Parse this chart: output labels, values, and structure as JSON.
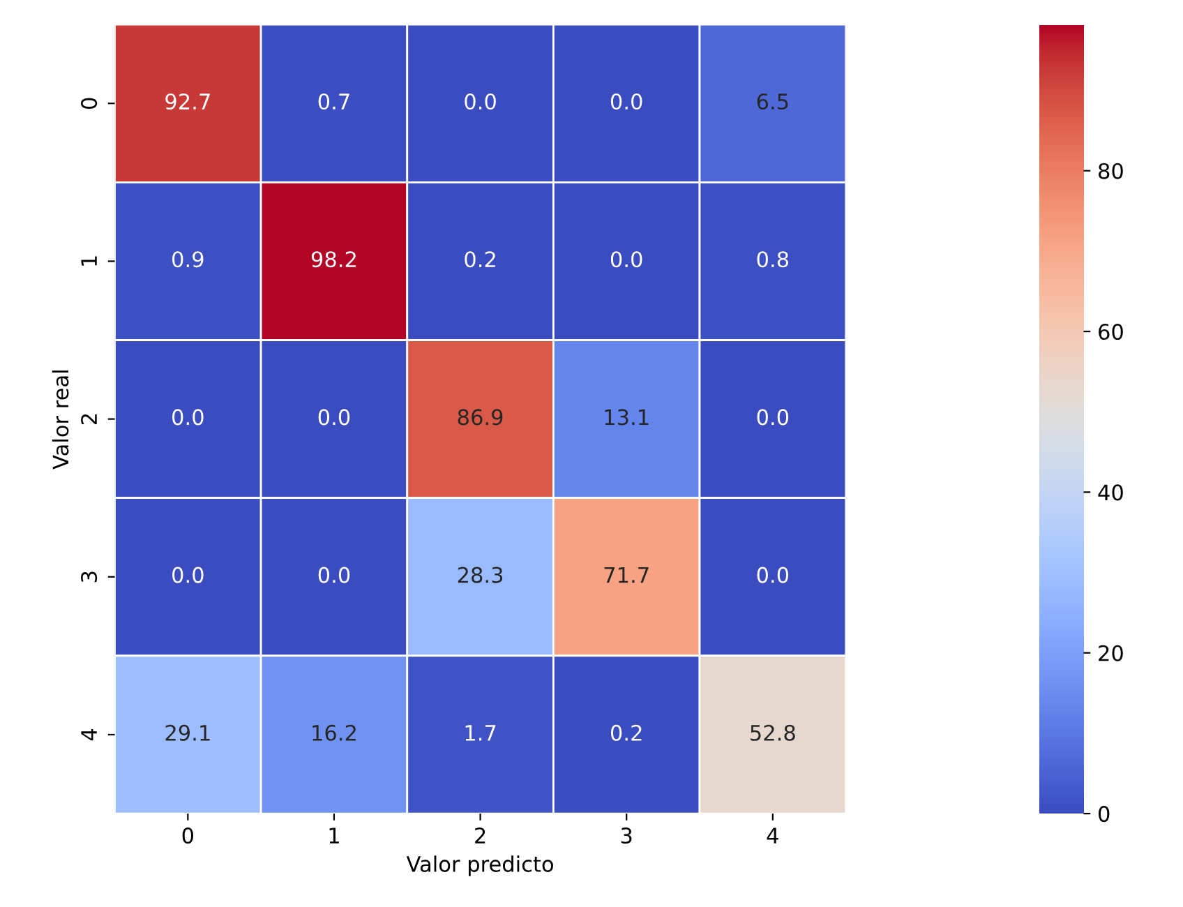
{
  "chart_data": {
    "type": "heatmap",
    "xlabel": "Valor predicto",
    "ylabel": "Valor real",
    "categories": [
      "0",
      "1",
      "2",
      "3",
      "4"
    ],
    "y_categories": [
      "0",
      "1",
      "2",
      "3",
      "4"
    ],
    "cells": [
      [
        92.7,
        0.7,
        0.0,
        0.0,
        6.5
      ],
      [
        0.9,
        98.2,
        0.2,
        0.0,
        0.8
      ],
      [
        0.0,
        0.0,
        86.9,
        13.1,
        0.0
      ],
      [
        0.0,
        0.0,
        28.3,
        71.7,
        0.0
      ],
      [
        29.1,
        16.2,
        1.7,
        0.2,
        52.8
      ]
    ],
    "cell_labels": [
      [
        "92.7",
        "0.7",
        "0.0",
        "0.0",
        "6.5"
      ],
      [
        "0.9",
        "98.2",
        "0.2",
        "0.0",
        "0.8"
      ],
      [
        "0.0",
        "0.0",
        "86.9",
        "13.1",
        "0.0"
      ],
      [
        "0.0",
        "0.0",
        "28.3",
        "71.7",
        "0.0"
      ],
      [
        "29.1",
        "16.2",
        "1.7",
        "0.2",
        "52.8"
      ]
    ],
    "clim": [
      0,
      98.2
    ],
    "cticks": [
      0,
      20,
      40,
      60,
      80
    ]
  }
}
